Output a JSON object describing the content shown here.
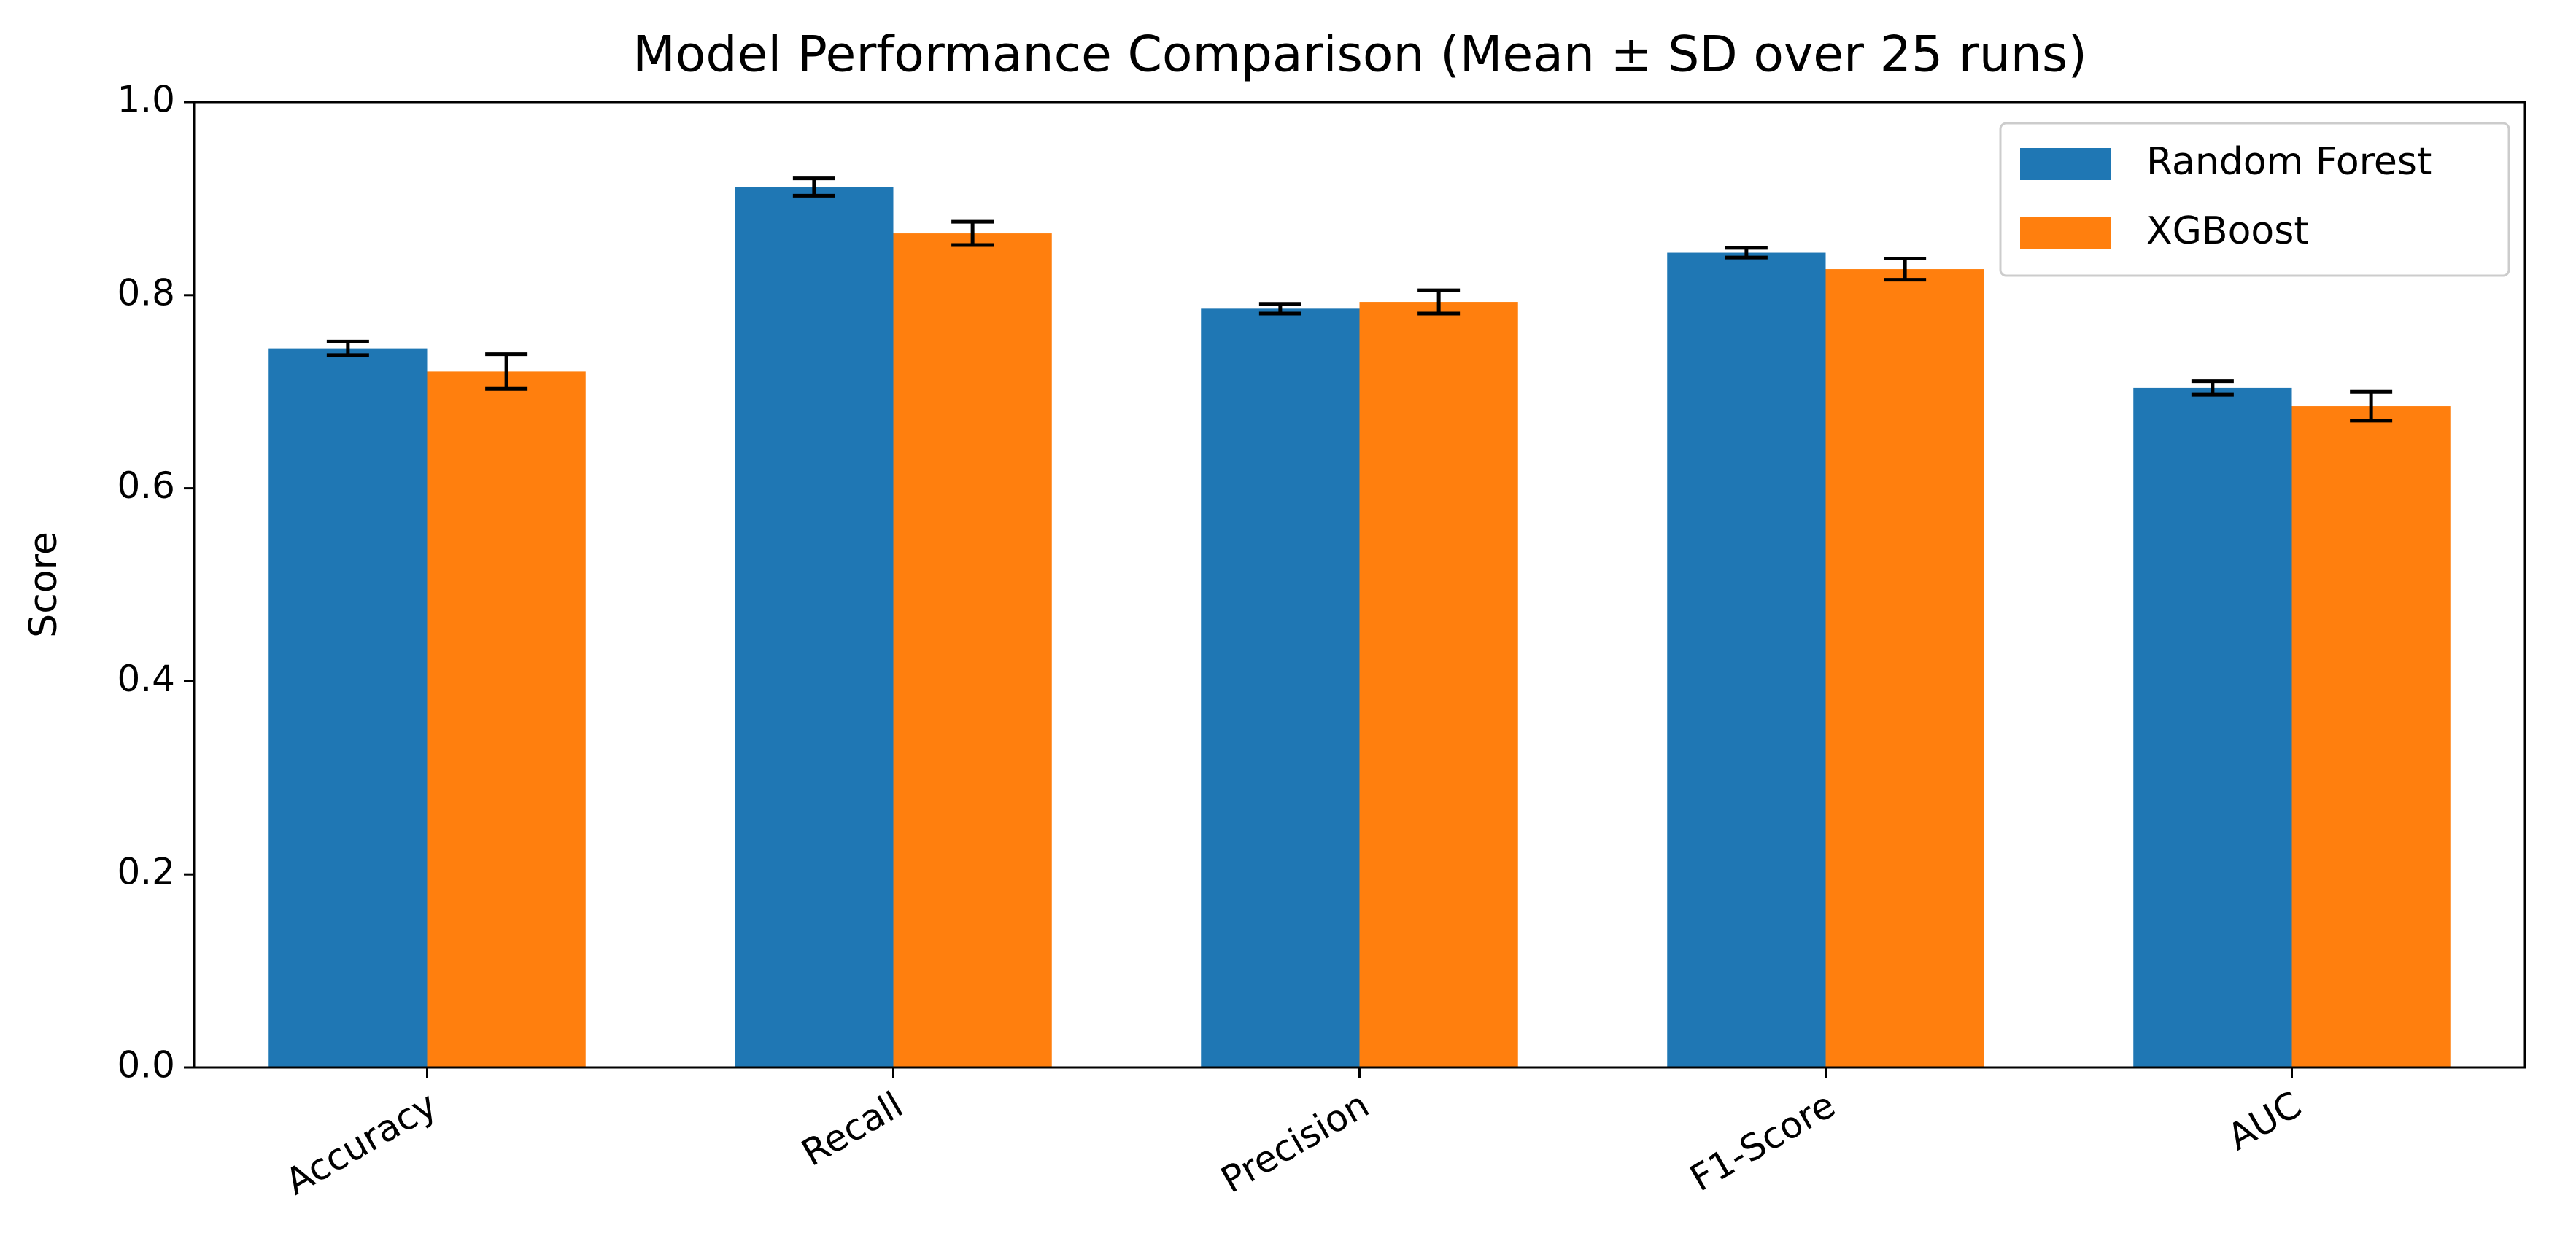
{
  "chart_data": {
    "type": "bar",
    "title": "Model Performance Comparison (Mean ± SD over 25 runs)",
    "y_label": "Score",
    "categories": [
      "Accuracy",
      "Recall",
      "Precision",
      "F1-Score",
      "AUC"
    ],
    "series": [
      {
        "name": "Random Forest",
        "color": "#1f77b4",
        "values": [
          0.745,
          0.912,
          0.786,
          0.844,
          0.704
        ],
        "errors": [
          0.007,
          0.009,
          0.005,
          0.005,
          0.007
        ]
      },
      {
        "name": "XGBoost",
        "color": "#ff7f0e",
        "values": [
          0.721,
          0.864,
          0.793,
          0.827,
          0.685
        ],
        "errors": [
          0.018,
          0.012,
          0.012,
          0.011,
          0.015
        ]
      }
    ],
    "ylim": [
      0,
      1.0
    ],
    "yticks": [
      {
        "value": 0,
        "label": "0.0"
      },
      {
        "value": 0.2,
        "label": "0.2"
      },
      {
        "value": 0.4,
        "label": "0.4"
      },
      {
        "value": 0.6,
        "label": "0.6"
      },
      {
        "value": 0.8,
        "label": "0.8"
      },
      {
        "value": 1.0,
        "label": "1.0"
      }
    ],
    "legend": "upper right"
  }
}
